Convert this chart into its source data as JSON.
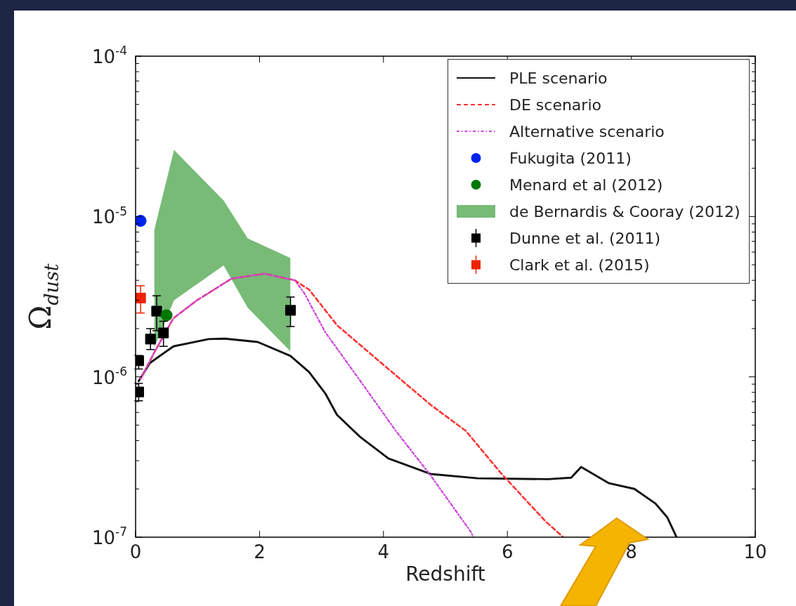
{
  "chart_data": {
    "type": "line",
    "xlabel": "Redshift",
    "ylabel": "Ω$_{dust}$",
    "xlim": [
      0,
      10
    ],
    "xticks": [
      0,
      2,
      4,
      6,
      8,
      10
    ],
    "ylim": [
      1e-07,
      0.0001
    ],
    "yticks": [
      {
        "value": 1e-07,
        "label": "10$^{-7}$"
      },
      {
        "value": 2e-07,
        "label": null
      },
      {
        "value": 3e-07,
        "label": null
      },
      {
        "value": 4e-07,
        "label": null
      },
      {
        "value": 5e-07,
        "label": null
      },
      {
        "value": 6e-07,
        "label": null
      },
      {
        "value": 7e-07,
        "label": null
      },
      {
        "value": 8e-07,
        "label": null
      },
      {
        "value": 9e-07,
        "label": null
      },
      {
        "value": 1e-06,
        "label": "10$^{-6}$"
      },
      {
        "value": 2e-06,
        "label": null
      },
      {
        "value": 3e-06,
        "label": null
      },
      {
        "value": 4e-06,
        "label": null
      },
      {
        "value": 5e-06,
        "label": null
      },
      {
        "value": 6e-06,
        "label": null
      },
      {
        "value": 7e-06,
        "label": null
      },
      {
        "value": 8e-06,
        "label": null
      },
      {
        "value": 9e-06,
        "label": null
      },
      {
        "value": 1e-05,
        "label": "10$^{-5}$"
      },
      {
        "value": 2e-05,
        "label": null
      },
      {
        "value": 3e-05,
        "label": null
      },
      {
        "value": 4e-05,
        "label": null
      },
      {
        "value": 5e-05,
        "label": null
      },
      {
        "value": 6e-05,
        "label": null
      },
      {
        "value": 7e-05,
        "label": null
      },
      {
        "value": 8e-05,
        "label": null
      },
      {
        "value": 9e-05,
        "label": null
      },
      {
        "value": 0.0001,
        "label": "10$^{-4}$"
      }
    ],
    "log": "y",
    "grid": false,
    "legend": "top right",
    "series": [
      {
        "name": "PLE scenario",
        "type": "line",
        "color": "#111111",
        "line_style": "solid",
        "marker": "none",
        "x": [
          0.05,
          0.23,
          0.61,
          1.18,
          1.44,
          1.97,
          2.5,
          2.8,
          3.06,
          3.25,
          3.63,
          4.08,
          4.76,
          5.52,
          6.66,
          7.03,
          7.19,
          7.64,
          8.05,
          8.39,
          8.58,
          8.73
        ],
        "values": [
          9.4e-07,
          1.22e-06,
          1.55e-06,
          1.72e-06,
          1.73e-06,
          1.65e-06,
          1.35e-06,
          1.07e-06,
          7.9e-07,
          5.8e-07,
          4.2e-07,
          3.1e-07,
          2.48e-07,
          2.33e-07,
          2.3e-07,
          2.35e-07,
          2.74e-07,
          2.17e-07,
          2e-07,
          1.62e-07,
          1.33e-07,
          1e-07
        ]
      },
      {
        "name": "DE scenario",
        "type": "line",
        "color": "#ff3333",
        "line_style": "dashed",
        "marker": "none",
        "x": [
          0.08,
          0.31,
          0.61,
          0.99,
          1.55,
          2.08,
          2.57,
          2.8,
          3.25,
          4.01,
          4.76,
          5.33,
          5.9,
          6.62,
          6.9
        ],
        "values": [
          9.7e-07,
          1.44e-06,
          2.32e-06,
          3e-06,
          4.1e-06,
          4.4e-06,
          4e-06,
          3.5e-06,
          2.1e-06,
          1.18e-06,
          6.7e-07,
          4.6e-07,
          2.5e-07,
          1.25e-07,
          1e-07
        ]
      },
      {
        "name": "Alternative scenario",
        "type": "line",
        "color": "#cc44dd",
        "line_style": "dotted",
        "marker": "none",
        "x": [
          0.08,
          0.31,
          0.61,
          0.99,
          1.55,
          2.08,
          2.57,
          2.72,
          3.06,
          3.63,
          4.2,
          4.76,
          5.41,
          5.45
        ],
        "values": [
          9.7e-07,
          1.44e-06,
          2.32e-06,
          3e-06,
          4.1e-06,
          4.4e-06,
          4e-06,
          3.34e-06,
          1.9e-06,
          9.4e-07,
          4.6e-07,
          2.43e-07,
          1.08e-07,
          1e-07
        ]
      },
      {
        "name": "Fukugita (2011)",
        "type": "scatter",
        "color": "#0022ee",
        "marker": "circle",
        "x": [
          0.08
        ],
        "values": [
          9.4e-06
        ]
      },
      {
        "name": "Menard et al (2012)",
        "type": "scatter",
        "color": "#007700",
        "marker": "circle",
        "x": [
          0.5
        ],
        "values": [
          2.42e-06
        ]
      },
      {
        "name": "de Bernardis & Cooray (2012)",
        "type": "area",
        "color": "#77bb77",
        "x": [
          0.3,
          0.62,
          1.42,
          1.81,
          2.5
        ],
        "values": [
          null,
          null,
          null,
          null,
          null
        ],
        "lower": [
          1.52e-06,
          3e-06,
          4.95e-06,
          2.7e-06,
          1.44e-06
        ],
        "upper": [
          8.2e-06,
          2.6e-05,
          1.26e-05,
          7.3e-06,
          5.5e-06
        ]
      },
      {
        "name": "Dunne et al. (2011)",
        "type": "scatter",
        "color": "#000000",
        "marker": "square",
        "x": [
          0.05,
          0.05,
          0.24,
          0.34,
          0.45,
          2.5
        ],
        "values": [
          8.05e-07,
          1.26e-06,
          1.72e-06,
          2.57e-06,
          1.88e-06,
          2.6e-06
        ],
        "errors": [
          [
            7.1e-07,
            9.1e-07
          ],
          [
            1.12e-06,
            1.36e-06
          ],
          [
            1.48e-06,
            2e-06
          ],
          [
            1.94e-06,
            3.2e-06
          ],
          [
            1.55e-06,
            2.22e-06
          ],
          [
            2.06e-06,
            3.15e-06
          ]
        ]
      },
      {
        "name": "Clark et al. (2015)",
        "type": "scatter",
        "color": "#ee2200",
        "marker": "square",
        "x": [
          0.08
        ],
        "values": [
          3.1e-06
        ],
        "errors": [
          [
            2.5e-06,
            3.7e-06
          ]
        ]
      }
    ]
  }
}
